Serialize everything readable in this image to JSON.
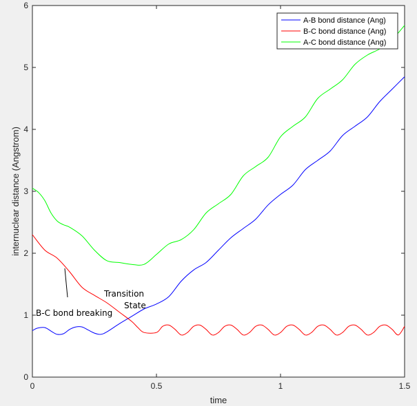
{
  "chart_data": {
    "type": "line",
    "xlabel": "time",
    "ylabel": "internuclear distance (Angstrom)",
    "xlim": [
      0,
      1.5
    ],
    "ylim": [
      0,
      6
    ],
    "xticks": [
      0,
      0.5,
      1,
      1.5
    ],
    "xtick_labels": [
      "0",
      "0.5",
      "1",
      "1.5"
    ],
    "yticks": [
      0,
      1,
      2,
      3,
      4,
      5,
      6
    ],
    "ytick_labels": [
      "0",
      "1",
      "2",
      "3",
      "4",
      "5",
      "6"
    ],
    "grid": false,
    "legend_position": "top-right",
    "series": [
      {
        "name": "A-B bond distance (Ang)",
        "color": "#0000ff",
        "x": [
          0,
          0.02,
          0.05,
          0.08,
          0.1,
          0.125,
          0.15,
          0.175,
          0.2,
          0.225,
          0.25,
          0.275,
          0.3,
          0.35,
          0.4,
          0.45,
          0.5,
          0.55,
          0.6,
          0.65,
          0.7,
          0.75,
          0.8,
          0.85,
          0.9,
          0.95,
          1.0,
          1.05,
          1.1,
          1.15,
          1.2,
          1.25,
          1.3,
          1.35,
          1.4,
          1.45,
          1.5
        ],
        "y": [
          0.75,
          0.79,
          0.8,
          0.73,
          0.69,
          0.7,
          0.77,
          0.81,
          0.81,
          0.76,
          0.71,
          0.69,
          0.73,
          0.86,
          0.98,
          1.1,
          1.18,
          1.3,
          1.55,
          1.73,
          1.85,
          2.05,
          2.25,
          2.4,
          2.55,
          2.78,
          2.95,
          3.1,
          3.35,
          3.5,
          3.65,
          3.9,
          4.05,
          4.2,
          4.45,
          4.65,
          4.85
        ]
      },
      {
        "name": "B-C bond distance (Ang)",
        "color": "#ff0000",
        "x": [
          0,
          0.05,
          0.1,
          0.15,
          0.2,
          0.25,
          0.3,
          0.35,
          0.4,
          0.425,
          0.45,
          0.5,
          0.525,
          0.55,
          0.575,
          0.6,
          0.625,
          0.65,
          0.675,
          0.7,
          0.725,
          0.75,
          0.775,
          0.8,
          0.825,
          0.85,
          0.875,
          0.9,
          0.925,
          0.95,
          0.975,
          1.0,
          1.025,
          1.05,
          1.075,
          1.1,
          1.125,
          1.15,
          1.175,
          1.2,
          1.225,
          1.25,
          1.275,
          1.3,
          1.325,
          1.35,
          1.375,
          1.4,
          1.425,
          1.45,
          1.475,
          1.5
        ],
        "y": [
          2.3,
          2.05,
          1.92,
          1.7,
          1.45,
          1.32,
          1.2,
          1.05,
          0.9,
          0.8,
          0.72,
          0.72,
          0.82,
          0.84,
          0.77,
          0.68,
          0.72,
          0.82,
          0.84,
          0.77,
          0.68,
          0.72,
          0.82,
          0.84,
          0.77,
          0.68,
          0.72,
          0.82,
          0.84,
          0.77,
          0.68,
          0.72,
          0.82,
          0.84,
          0.77,
          0.68,
          0.72,
          0.82,
          0.84,
          0.77,
          0.68,
          0.72,
          0.82,
          0.84,
          0.77,
          0.68,
          0.72,
          0.82,
          0.84,
          0.77,
          0.68,
          0.82
        ]
      },
      {
        "name": "A-C bond distance (Ang)",
        "color": "#00ff00",
        "x": [
          0,
          0.025,
          0.05,
          0.075,
          0.1,
          0.125,
          0.15,
          0.2,
          0.25,
          0.3,
          0.35,
          0.4,
          0.45,
          0.5,
          0.55,
          0.6,
          0.65,
          0.7,
          0.75,
          0.8,
          0.85,
          0.9,
          0.95,
          1.0,
          1.05,
          1.1,
          1.15,
          1.2,
          1.25,
          1.3,
          1.35,
          1.4,
          1.45,
          1.5
        ],
        "y": [
          3.05,
          2.98,
          2.85,
          2.65,
          2.52,
          2.46,
          2.42,
          2.28,
          2.05,
          1.88,
          1.85,
          1.82,
          1.82,
          1.98,
          2.15,
          2.22,
          2.38,
          2.65,
          2.8,
          2.95,
          3.25,
          3.4,
          3.55,
          3.88,
          4.05,
          4.2,
          4.5,
          4.65,
          4.8,
          5.05,
          5.2,
          5.3,
          5.45,
          5.68
        ]
      }
    ],
    "annotations": [
      {
        "text": "B-C bond breaking",
        "x": 0.0,
        "y": 1.0
      },
      {
        "text": "Transition",
        "x": 0.3,
        "y": 1.3
      },
      {
        "text": "State",
        "x": 0.35,
        "y": 1.15
      }
    ]
  }
}
